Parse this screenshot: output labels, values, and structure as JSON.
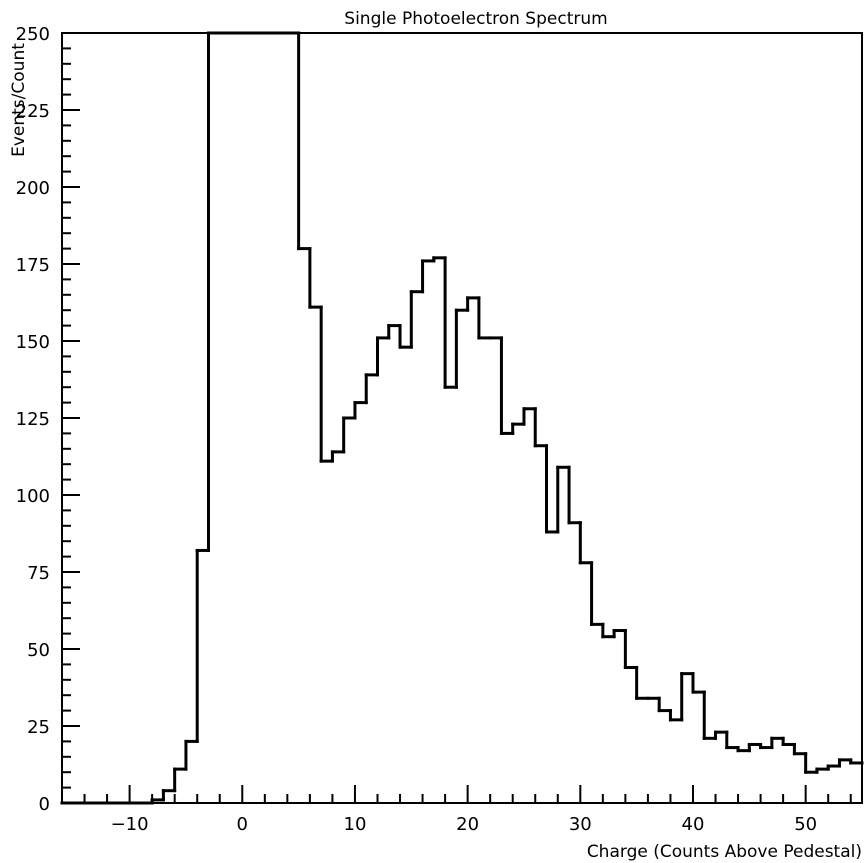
{
  "chart_data": {
    "type": "histogram",
    "title": "Single Photoelectron Spectrum",
    "xlabel": "Charge (Counts Above Pedestal)",
    "ylabel": "Events/Count",
    "xlim": [
      -16,
      55
    ],
    "ylim": [
      0,
      250
    ],
    "x_ticks": [
      -10,
      0,
      10,
      20,
      30,
      40,
      50
    ],
    "y_ticks": [
      0,
      25,
      50,
      75,
      100,
      125,
      150,
      175,
      200,
      225,
      250
    ],
    "x_tick_labels": [
      "−10",
      "0",
      "10",
      "20",
      "30",
      "40",
      "50"
    ],
    "y_tick_labels": [
      "0",
      "25",
      "50",
      "75",
      "100",
      "125",
      "150",
      "175",
      "200",
      "225",
      "250"
    ],
    "bin_width": 1,
    "bins": [
      {
        "x": -16,
        "y": 0
      },
      {
        "x": -15,
        "y": 0
      },
      {
        "x": -14,
        "y": 0
      },
      {
        "x": -13,
        "y": 0
      },
      {
        "x": -12,
        "y": 0
      },
      {
        "x": -11,
        "y": 0
      },
      {
        "x": -10,
        "y": 0
      },
      {
        "x": -9,
        "y": 0
      },
      {
        "x": -8,
        "y": 1
      },
      {
        "x": -7,
        "y": 4
      },
      {
        "x": -6,
        "y": 11
      },
      {
        "x": -5,
        "y": 20
      },
      {
        "x": -4,
        "y": 82
      },
      {
        "x": -3,
        "y": 250
      },
      {
        "x": -2,
        "y": 250
      },
      {
        "x": -1,
        "y": 250
      },
      {
        "x": 0,
        "y": 250
      },
      {
        "x": 1,
        "y": 250
      },
      {
        "x": 2,
        "y": 250
      },
      {
        "x": 3,
        "y": 250
      },
      {
        "x": 4,
        "y": 250
      },
      {
        "x": 5,
        "y": 180
      },
      {
        "x": 6,
        "y": 161
      },
      {
        "x": 7,
        "y": 111
      },
      {
        "x": 8,
        "y": 114
      },
      {
        "x": 9,
        "y": 125
      },
      {
        "x": 10,
        "y": 130
      },
      {
        "x": 11,
        "y": 139
      },
      {
        "x": 12,
        "y": 151
      },
      {
        "x": 13,
        "y": 155
      },
      {
        "x": 14,
        "y": 148
      },
      {
        "x": 15,
        "y": 166
      },
      {
        "x": 16,
        "y": 176
      },
      {
        "x": 17,
        "y": 177
      },
      {
        "x": 18,
        "y": 135
      },
      {
        "x": 19,
        "y": 160
      },
      {
        "x": 20,
        "y": 164
      },
      {
        "x": 21,
        "y": 151
      },
      {
        "x": 22,
        "y": 151
      },
      {
        "x": 23,
        "y": 120
      },
      {
        "x": 24,
        "y": 123
      },
      {
        "x": 25,
        "y": 128
      },
      {
        "x": 26,
        "y": 116
      },
      {
        "x": 27,
        "y": 88
      },
      {
        "x": 28,
        "y": 109
      },
      {
        "x": 29,
        "y": 91
      },
      {
        "x": 30,
        "y": 78
      },
      {
        "x": 31,
        "y": 58
      },
      {
        "x": 32,
        "y": 54
      },
      {
        "x": 33,
        "y": 56
      },
      {
        "x": 34,
        "y": 44
      },
      {
        "x": 35,
        "y": 34
      },
      {
        "x": 36,
        "y": 34
      },
      {
        "x": 37,
        "y": 30
      },
      {
        "x": 38,
        "y": 27
      },
      {
        "x": 39,
        "y": 42
      },
      {
        "x": 40,
        "y": 36
      },
      {
        "x": 41,
        "y": 21
      },
      {
        "x": 42,
        "y": 23
      },
      {
        "x": 43,
        "y": 18
      },
      {
        "x": 44,
        "y": 17
      },
      {
        "x": 45,
        "y": 19
      },
      {
        "x": 46,
        "y": 18
      },
      {
        "x": 47,
        "y": 21
      },
      {
        "x": 48,
        "y": 19
      },
      {
        "x": 49,
        "y": 16
      },
      {
        "x": 50,
        "y": 10
      },
      {
        "x": 51,
        "y": 11
      },
      {
        "x": 52,
        "y": 12
      },
      {
        "x": 53,
        "y": 14
      },
      {
        "x": 54,
        "y": 13
      }
    ],
    "line_color": "#000000",
    "grid": false,
    "legend": "none"
  }
}
